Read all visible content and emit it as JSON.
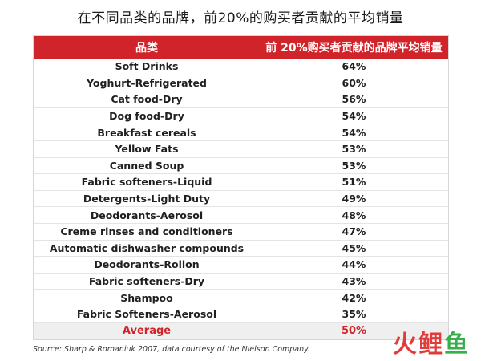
{
  "title": "在不同品类的品牌，前20%的购买者贡献的平均销量",
  "chart_data": {
    "type": "table",
    "columns": [
      "品类",
      "前 20%购买者贡献的品牌平均销量"
    ],
    "rows": [
      {
        "category": "Soft Drinks",
        "value": "64%"
      },
      {
        "category": "Yoghurt-Refrigerated",
        "value": "60%"
      },
      {
        "category": "Cat food-Dry",
        "value": "56%"
      },
      {
        "category": "Dog food-Dry",
        "value": "54%"
      },
      {
        "category": "Breakfast cereals",
        "value": "54%"
      },
      {
        "category": "Yellow Fats",
        "value": "53%"
      },
      {
        "category": "Canned Soup",
        "value": "53%"
      },
      {
        "category": "Fabric softeners-Liquid",
        "value": "51%"
      },
      {
        "category": "Detergents-Light Duty",
        "value": "49%"
      },
      {
        "category": "Deodorants-Aerosol",
        "value": "48%"
      },
      {
        "category": "Creme rinses and conditioners",
        "value": "47%"
      },
      {
        "category": "Automatic dishwasher compounds",
        "value": "45%"
      },
      {
        "category": "Deodorants-Rollon",
        "value": "44%"
      },
      {
        "category": "Fabric softeners-Dry",
        "value": "43%"
      },
      {
        "category": "Shampoo",
        "value": "42%"
      },
      {
        "category": "Fabric Softeners-Aerosol",
        "value": "35%"
      }
    ],
    "average": {
      "label": "Average",
      "value": "50%"
    }
  },
  "source": "Source: Sharp & Romaniuk 2007, data courtesy of the Nielson Company.",
  "watermark": {
    "text1": "火鲤",
    "text2": "鱼"
  },
  "colors": {
    "header_bg": "#d1232a",
    "accent_red": "#d1232a",
    "average_bg": "#efefef"
  }
}
